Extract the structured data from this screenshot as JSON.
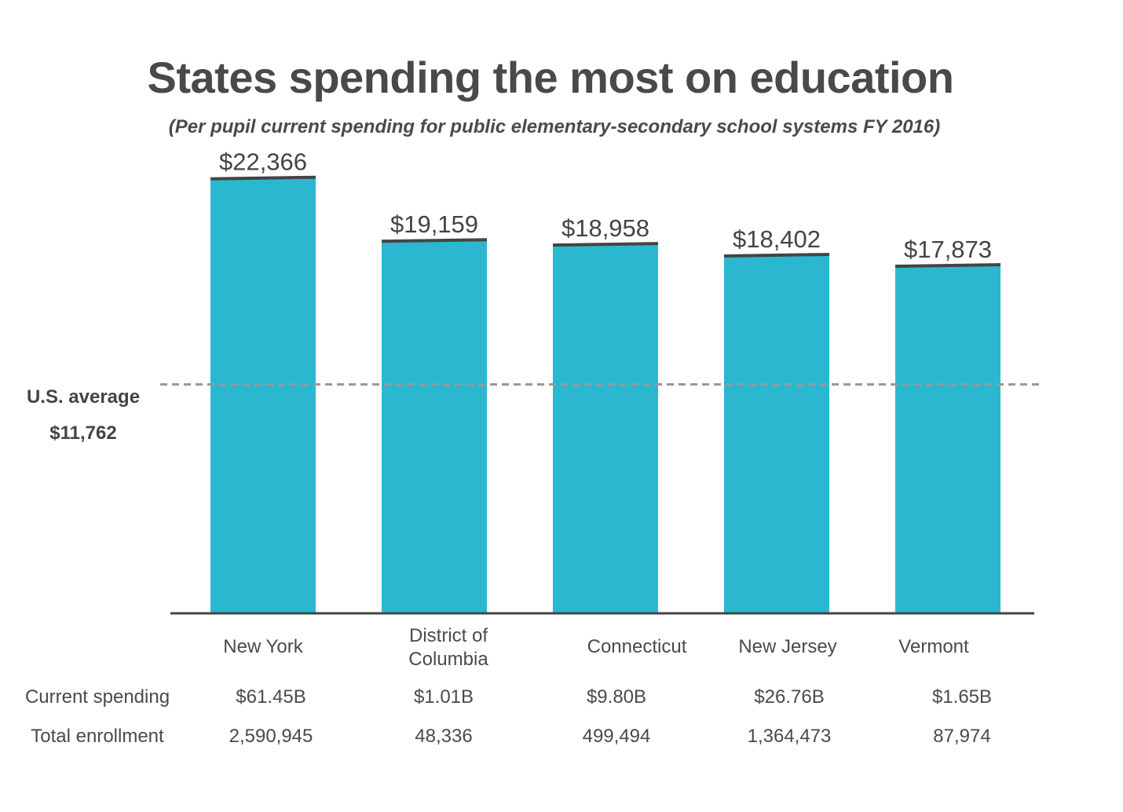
{
  "chart_data": {
    "type": "bar",
    "title": "States spending the most on education",
    "subtitle": "(Per pupil current spending for public elementary-secondary school systems FY 2016)",
    "categories": [
      "New York",
      "District of Columbia",
      "Connecticut",
      "New Jersey",
      "Vermont"
    ],
    "category_lines": [
      [
        "New York"
      ],
      [
        "District of",
        "Columbia"
      ],
      [
        "Connecticut"
      ],
      [
        "New Jersey"
      ],
      [
        "Vermont"
      ]
    ],
    "values": [
      22366,
      19159,
      18958,
      18402,
      17873
    ],
    "data_labels": [
      "$22,366",
      "$19,159",
      "$18,958",
      "$18,402",
      "$17,873"
    ],
    "ylim": [
      0,
      23000
    ],
    "bar_color": "#2cb7d0",
    "bar_top_color": "#444444",
    "reference_line": {
      "label": "U.S. average",
      "value_label": "$11,762",
      "value": 11762,
      "color": "#999999",
      "style": "dashed"
    },
    "table": {
      "rows": [
        {
          "header": "Current spending",
          "cells": [
            "$61.45B",
            "$1.01B",
            "$9.80B",
            "$26.76B",
            "$1.65B"
          ]
        },
        {
          "header": "Total enrollment",
          "cells": [
            "2,590,945",
            "48,336",
            "499,494",
            "1,364,473",
            "87,974"
          ]
        }
      ]
    }
  }
}
